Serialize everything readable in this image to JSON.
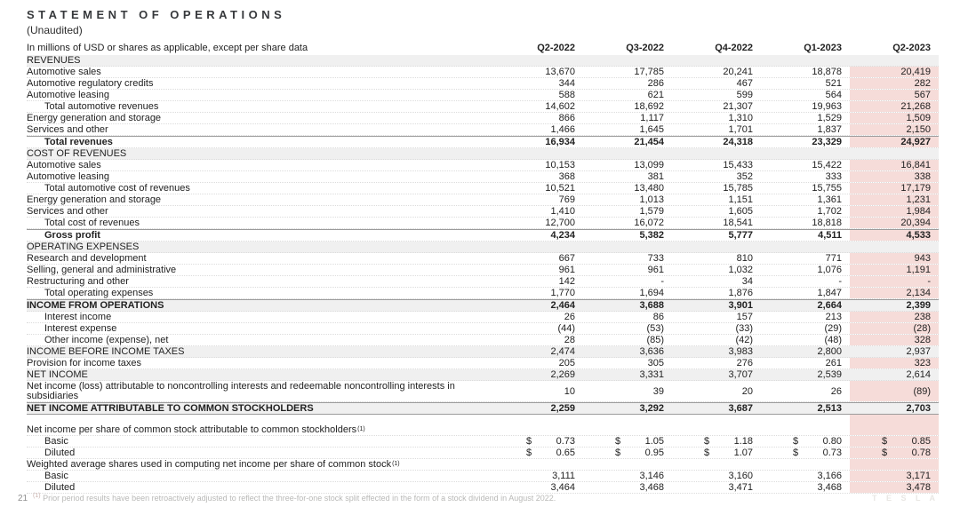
{
  "title": "STATEMENT OF OPERATIONS",
  "subtitle": "(Unaudited)",
  "colors": {
    "highlight_column": "#f6dcd9",
    "section_row": "#f0f0f0"
  },
  "table": {
    "unit_note": "In millions of USD or shares as applicable, except per share data",
    "columns": [
      "Q2-2022",
      "Q3-2022",
      "Q4-2022",
      "Q1-2023",
      "Q2-2023"
    ],
    "highlighted_column": "Q2-2023",
    "rows": [
      {
        "label": "REVENUES",
        "section": true
      },
      {
        "label": "Automotive sales",
        "values": [
          "13,670",
          "17,785",
          "20,241",
          "18,878",
          "20,419"
        ]
      },
      {
        "label": "Automotive regulatory credits",
        "values": [
          "344",
          "286",
          "467",
          "521",
          "282"
        ]
      },
      {
        "label": "Automotive leasing",
        "values": [
          "588",
          "621",
          "599",
          "564",
          "567"
        ]
      },
      {
        "label": "Total automotive revenues",
        "indent": true,
        "values": [
          "14,602",
          "18,692",
          "21,307",
          "19,963",
          "21,268"
        ]
      },
      {
        "label": "Energy generation and storage",
        "values": [
          "866",
          "1,117",
          "1,310",
          "1,529",
          "1,509"
        ]
      },
      {
        "label": "Services and other",
        "values": [
          "1,466",
          "1,645",
          "1,701",
          "1,837",
          "2,150"
        ]
      },
      {
        "label": "Total revenues",
        "indent": true,
        "bold": true,
        "topline": true,
        "values": [
          "16,934",
          "21,454",
          "24,318",
          "23,329",
          "24,927"
        ]
      },
      {
        "label": "COST OF REVENUES",
        "section": true
      },
      {
        "label": "Automotive sales",
        "values": [
          "10,153",
          "13,099",
          "15,433",
          "15,422",
          "16,841"
        ]
      },
      {
        "label": "Automotive leasing",
        "values": [
          "368",
          "381",
          "352",
          "333",
          "338"
        ]
      },
      {
        "label": "Total automotive cost of revenues",
        "indent": true,
        "values": [
          "10,521",
          "13,480",
          "15,785",
          "15,755",
          "17,179"
        ]
      },
      {
        "label": "Energy generation and storage",
        "values": [
          "769",
          "1,013",
          "1,151",
          "1,361",
          "1,231"
        ]
      },
      {
        "label": "Services and other",
        "values": [
          "1,410",
          "1,579",
          "1,605",
          "1,702",
          "1,984"
        ]
      },
      {
        "label": "Total cost of revenues",
        "indent": true,
        "values": [
          "12,700",
          "16,072",
          "18,541",
          "18,818",
          "20,394"
        ]
      },
      {
        "label": "Gross profit",
        "indent": true,
        "bold": true,
        "topline": true,
        "values": [
          "4,234",
          "5,382",
          "5,777",
          "4,511",
          "4,533"
        ]
      },
      {
        "label": "OPERATING EXPENSES",
        "section": true
      },
      {
        "label": "Research and development",
        "values": [
          "667",
          "733",
          "810",
          "771",
          "943"
        ]
      },
      {
        "label": "Selling, general and administrative",
        "values": [
          "961",
          "961",
          "1,032",
          "1,076",
          "1,191"
        ]
      },
      {
        "label": "Restructuring and other",
        "values": [
          "142",
          "-",
          "34",
          "-",
          "-"
        ]
      },
      {
        "label": "Total operating expenses",
        "indent": true,
        "values": [
          "1,770",
          "1,694",
          "1,876",
          "1,847",
          "2,134"
        ]
      },
      {
        "label": "INCOME FROM OPERATIONS",
        "bold": true,
        "gray": true,
        "topline": true,
        "values": [
          "2,464",
          "3,688",
          "3,901",
          "2,664",
          "2,399"
        ]
      },
      {
        "label": "Interest income",
        "indent": true,
        "values": [
          "26",
          "86",
          "157",
          "213",
          "238"
        ]
      },
      {
        "label": "Interest expense",
        "indent": true,
        "values": [
          "(44)",
          "(53)",
          "(33)",
          "(29)",
          "(28)"
        ]
      },
      {
        "label": "Other income (expense), net",
        "indent": true,
        "values": [
          "28",
          "(85)",
          "(42)",
          "(48)",
          "328"
        ]
      },
      {
        "label": "INCOME BEFORE INCOME TAXES",
        "gray": true,
        "values": [
          "2,474",
          "3,636",
          "3,983",
          "2,800",
          "2,937"
        ]
      },
      {
        "label": "Provision for income taxes",
        "values": [
          "205",
          "305",
          "276",
          "261",
          "323"
        ]
      },
      {
        "label": "NET INCOME",
        "gray": true,
        "values": [
          "2,269",
          "3,331",
          "3,707",
          "2,539",
          "2,614"
        ]
      },
      {
        "label": "Net income (loss) attributable to noncontrolling interests and redeemable noncontrolling interests in subsidiaries",
        "wrap": true,
        "values": [
          "10",
          "39",
          "20",
          "26",
          "(89)"
        ]
      },
      {
        "label": "NET INCOME ATTRIBUTABLE TO COMMON STOCKHOLDERS",
        "bold": true,
        "gray": true,
        "topline": true,
        "bottomline": true,
        "values": [
          "2,259",
          "3,292",
          "3,687",
          "2,513",
          "2,703"
        ]
      },
      {
        "spacer": true
      },
      {
        "label": "Net income per share of common stock attributable to common stockholders",
        "sup": "(1)"
      },
      {
        "label": "Basic",
        "indent": true,
        "dollar": true,
        "values": [
          "0.73",
          "1.05",
          "1.18",
          "0.80",
          "0.85"
        ]
      },
      {
        "label": "Diluted",
        "indent": true,
        "dollar": true,
        "values": [
          "0.65",
          "0.95",
          "1.07",
          "0.73",
          "0.78"
        ]
      },
      {
        "label": "Weighted average shares used in computing net income per share of common stock",
        "sup": "(1)"
      },
      {
        "label": "Basic",
        "indent": true,
        "values": [
          "3,111",
          "3,146",
          "3,160",
          "3,166",
          "3,171"
        ]
      },
      {
        "label": "Diluted",
        "indent": true,
        "values": [
          "3,464",
          "3,468",
          "3,471",
          "3,468",
          "3,478"
        ]
      }
    ]
  },
  "footer": {
    "page_number": "21",
    "footnote_marker": "(1)",
    "footnote": "Prior period results have been retroactively adjusted to reflect the three-for-one stock split effected in the form of a stock dividend in August 2022.",
    "brand": "T E S L A"
  }
}
